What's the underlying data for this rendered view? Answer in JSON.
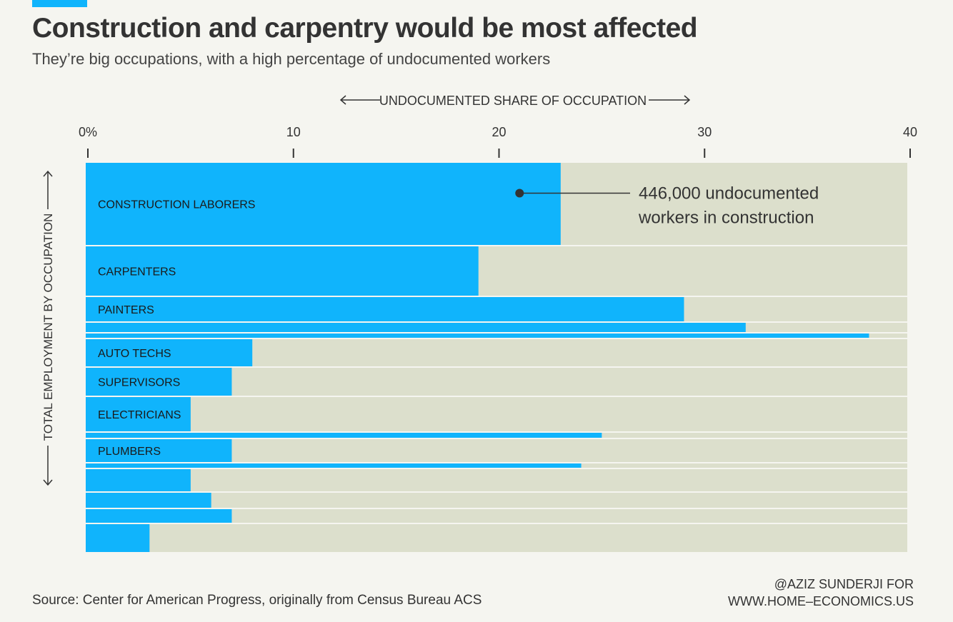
{
  "title": "Construction and carpentry would be most affected",
  "subtitle": "They’re big occupations, with a high percentage of undocumented workers",
  "source": "Source: Center for American Progress, originally from Census Bureau ACS",
  "credit_line1": "@AZIZ SUNDERJI FOR",
  "credit_line2": "WWW.HOME–ECONOMICS.US",
  "colors": {
    "accent": "#10b4fc",
    "background_bar": "#dcdfcc",
    "page": "#f5f5f0",
    "text": "#333333"
  },
  "chart_data": {
    "type": "bar",
    "orientation": "horizontal-mosaic",
    "x_axis_label": "UNDOCUMENTED SHARE OF OCCUPATION",
    "y_axis_label": "TOTAL EMPLOYMENT BY OCCUPATION",
    "x_ticks": [
      "0%",
      "10",
      "20",
      "30",
      "40"
    ],
    "x_tick_values": [
      0,
      10,
      20,
      30,
      40
    ],
    "xlim": [
      0,
      40
    ],
    "annotation": {
      "line1": "446,000 undocumented",
      "line2": "workers in construction",
      "series_index": 0,
      "x_value": 21
    },
    "categories": [
      "CONSTRUCTION LABORERS",
      "CARPENTERS",
      "PAINTERS",
      "",
      "",
      "AUTO TECHS",
      "SUPERVISORS",
      "ELECTRICIANS",
      "",
      "PLUMBERS",
      "",
      "",
      "",
      "",
      ""
    ],
    "values": [
      23,
      19,
      29,
      32,
      38,
      8,
      7,
      5,
      25,
      7,
      24,
      5,
      6,
      7,
      3
    ],
    "relative_employment": [
      115,
      69,
      34,
      13,
      6,
      38,
      39,
      48,
      7,
      32,
      6,
      31,
      21,
      19,
      39
    ]
  }
}
